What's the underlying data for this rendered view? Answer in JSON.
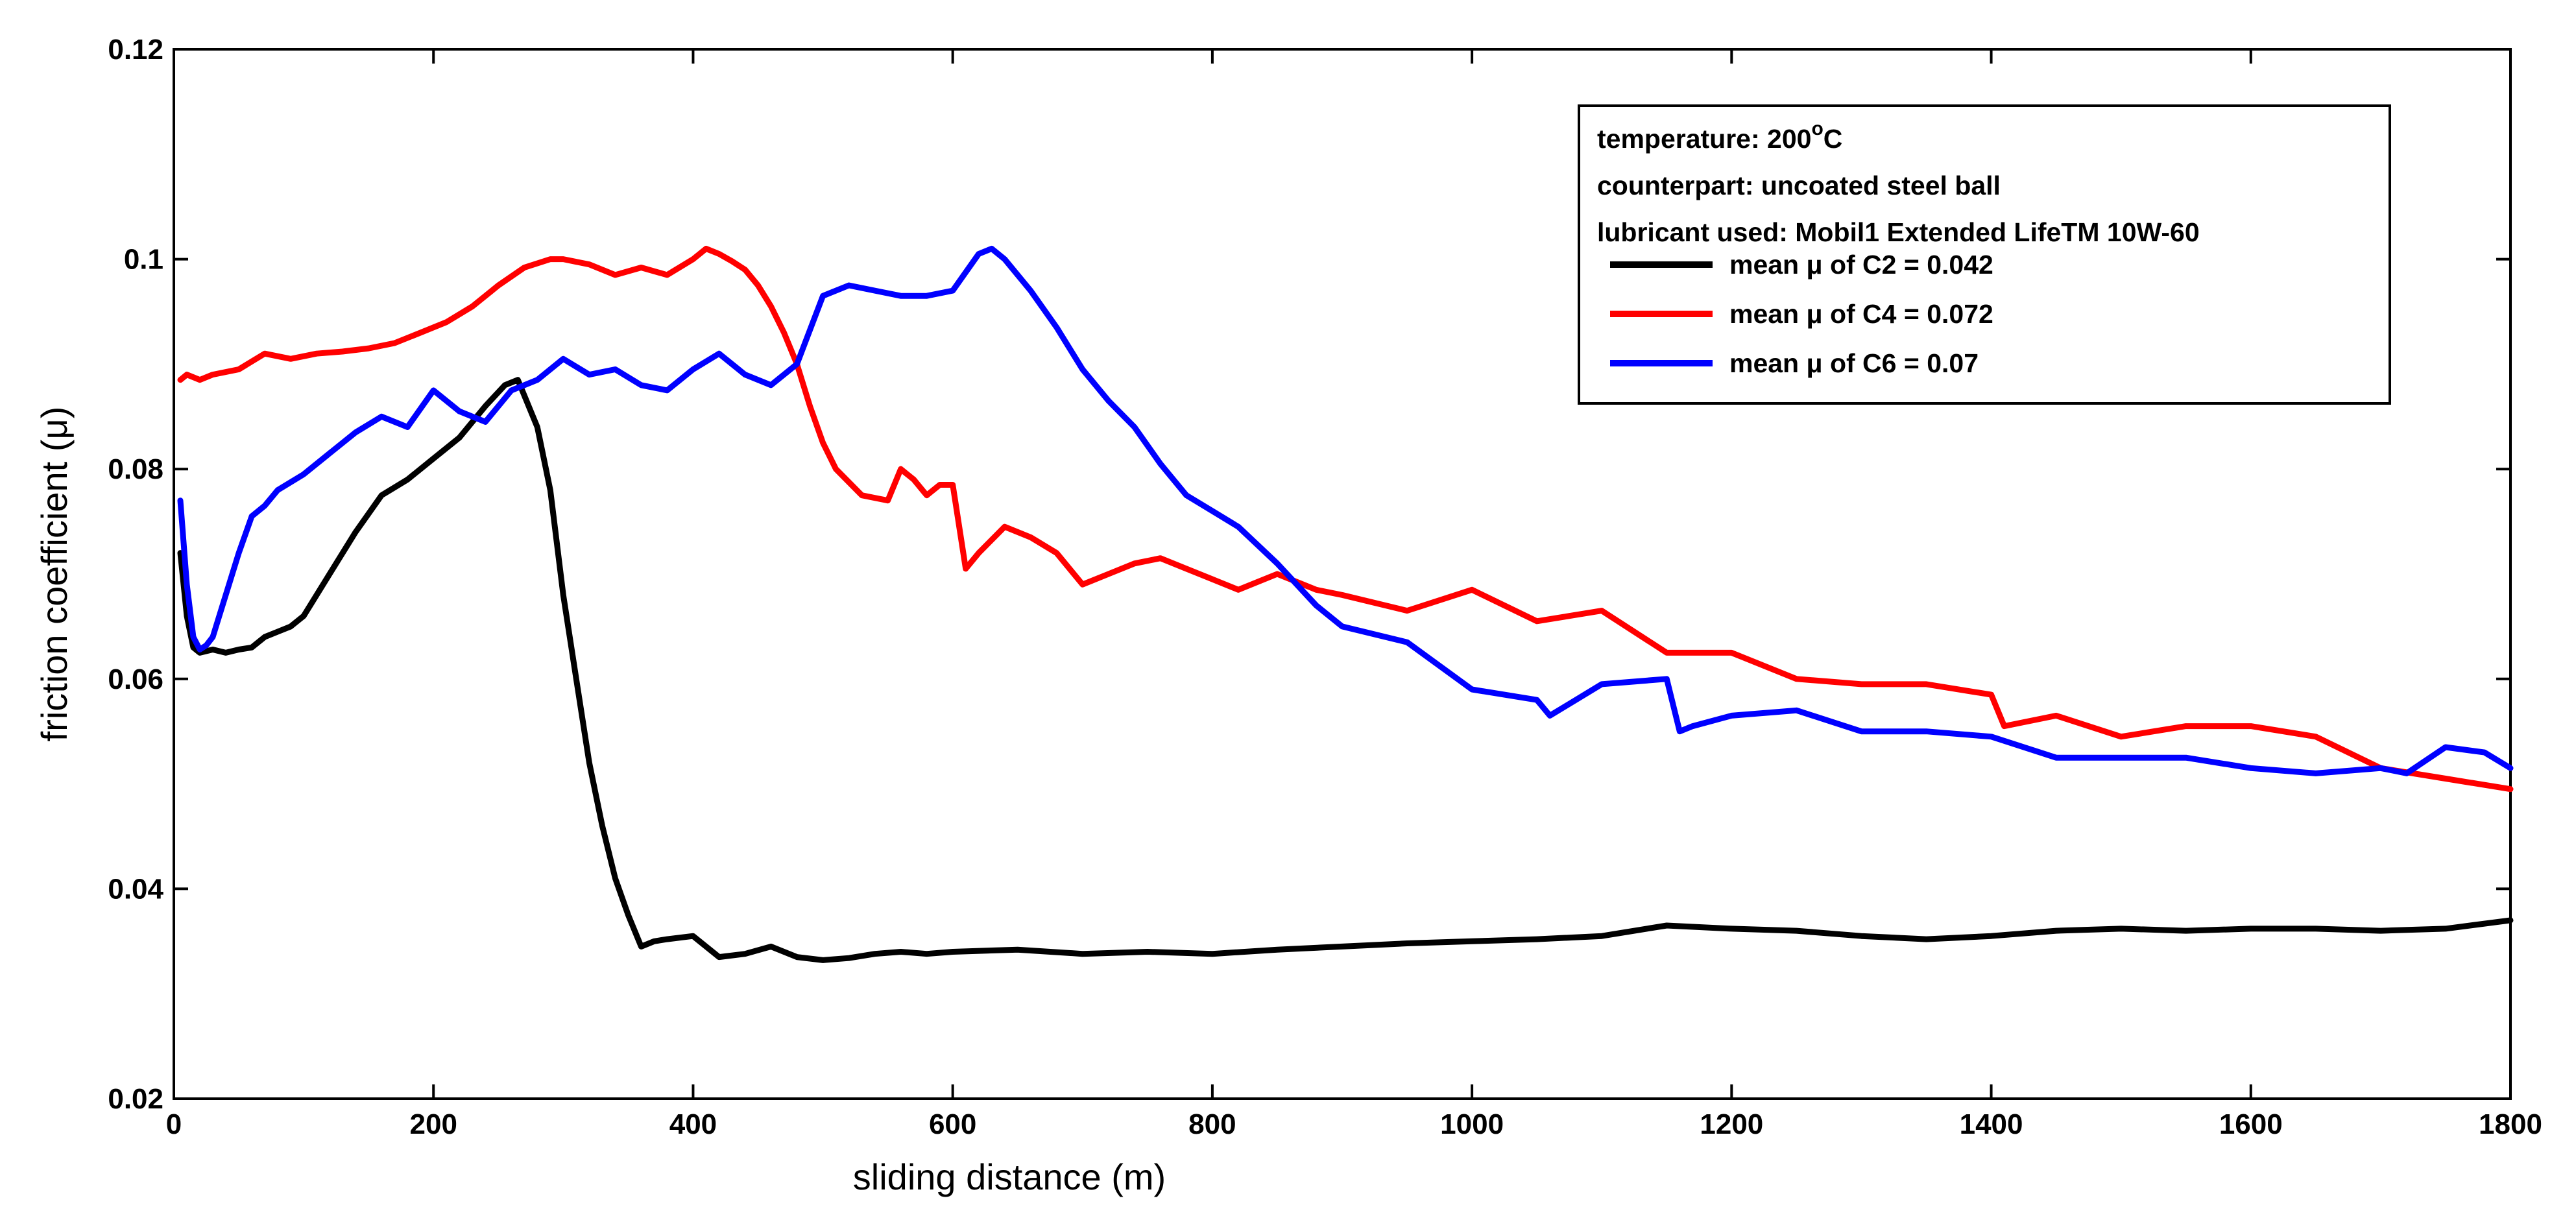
{
  "chart_data": {
    "type": "line",
    "title": "",
    "xlabel": "sliding distance (m)",
    "ylabel": "friction coefficient (μ)",
    "xlim": [
      0,
      1800
    ],
    "ylim": [
      0.02,
      0.12
    ],
    "x_ticks": [
      0,
      200,
      400,
      600,
      800,
      1000,
      1200,
      1400,
      1600,
      1800
    ],
    "x_tick_labels": [
      "0",
      "200",
      "400",
      "600",
      "800",
      "1000",
      "1200",
      "1400",
      "1600",
      "1800"
    ],
    "y_ticks": [
      0.02,
      0.04,
      0.06,
      0.08,
      0.1,
      0.12
    ],
    "y_tick_labels": [
      "0.02",
      "0.04",
      "0.06",
      "0.08",
      "0.1",
      "0.12"
    ],
    "grid": false,
    "legend_position": "top-right",
    "legend_info": {
      "temperature_prefix": "temperature: 200",
      "temperature_degree": "o",
      "temperature_unit": "C",
      "counterpart": "counterpart: uncoated steel ball",
      "lubricant": "lubricant used: Mobil1 Extended LifeTM 10W-60"
    },
    "series": [
      {
        "name": "mean μ of C2 = 0.042",
        "color": "#000000",
        "x": [
          5,
          10,
          15,
          20,
          30,
          40,
          50,
          60,
          70,
          80,
          90,
          100,
          120,
          140,
          160,
          180,
          200,
          220,
          240,
          255,
          265,
          270,
          280,
          290,
          300,
          310,
          320,
          330,
          340,
          350,
          360,
          370,
          380,
          400,
          420,
          440,
          460,
          480,
          500,
          520,
          540,
          560,
          580,
          600,
          650,
          700,
          750,
          800,
          850,
          900,
          950,
          1000,
          1050,
          1100,
          1150,
          1200,
          1250,
          1300,
          1350,
          1400,
          1450,
          1500,
          1550,
          1600,
          1650,
          1700,
          1750,
          1800
        ],
        "y": [
          0.072,
          0.066,
          0.063,
          0.0625,
          0.0628,
          0.0625,
          0.0628,
          0.063,
          0.064,
          0.0645,
          0.065,
          0.066,
          0.07,
          0.074,
          0.0775,
          0.079,
          0.081,
          0.083,
          0.086,
          0.088,
          0.0885,
          0.087,
          0.084,
          0.078,
          0.068,
          0.06,
          0.052,
          0.046,
          0.041,
          0.0375,
          0.0345,
          0.035,
          0.0352,
          0.0355,
          0.0335,
          0.0338,
          0.0345,
          0.0335,
          0.0332,
          0.0334,
          0.0338,
          0.034,
          0.0338,
          0.034,
          0.0342,
          0.0338,
          0.034,
          0.0338,
          0.0342,
          0.0345,
          0.0348,
          0.035,
          0.0352,
          0.0355,
          0.0365,
          0.0362,
          0.036,
          0.0355,
          0.0352,
          0.0355,
          0.036,
          0.0362,
          0.036,
          0.0362,
          0.0362,
          0.036,
          0.0362,
          0.037
        ]
      },
      {
        "name": "mean μ of C4 = 0.072",
        "color": "#ff0000",
        "x": [
          5,
          10,
          20,
          30,
          50,
          70,
          90,
          110,
          130,
          150,
          170,
          190,
          210,
          230,
          250,
          270,
          290,
          300,
          320,
          340,
          360,
          380,
          400,
          410,
          420,
          430,
          440,
          450,
          460,
          470,
          480,
          490,
          500,
          510,
          530,
          550,
          560,
          570,
          580,
          590,
          600,
          610,
          620,
          640,
          660,
          680,
          700,
          720,
          740,
          760,
          780,
          800,
          820,
          850,
          880,
          900,
          950,
          1000,
          1050,
          1100,
          1150,
          1200,
          1250,
          1300,
          1350,
          1400,
          1410,
          1450,
          1500,
          1550,
          1600,
          1650,
          1700,
          1750,
          1800
        ],
        "y": [
          0.0885,
          0.089,
          0.0885,
          0.089,
          0.0895,
          0.091,
          0.0905,
          0.091,
          0.0912,
          0.0915,
          0.092,
          0.093,
          0.094,
          0.0955,
          0.0975,
          0.0992,
          0.1,
          0.1,
          0.0995,
          0.0985,
          0.0992,
          0.0985,
          0.1,
          0.101,
          0.1005,
          0.0998,
          0.099,
          0.0975,
          0.0955,
          0.093,
          0.09,
          0.086,
          0.0825,
          0.08,
          0.0775,
          0.077,
          0.08,
          0.079,
          0.0775,
          0.0785,
          0.0785,
          0.0705,
          0.072,
          0.0745,
          0.0735,
          0.072,
          0.069,
          0.07,
          0.071,
          0.0715,
          0.0705,
          0.0695,
          0.0685,
          0.07,
          0.0685,
          0.068,
          0.0665,
          0.0685,
          0.0655,
          0.0665,
          0.0625,
          0.0625,
          0.06,
          0.0595,
          0.0595,
          0.0585,
          0.0555,
          0.0565,
          0.0545,
          0.0555,
          0.0555,
          0.0545,
          0.0515,
          0.0505,
          0.0495
        ]
      },
      {
        "name": "mean μ of C6 = 0.07",
        "color": "#0000ff",
        "x": [
          5,
          10,
          15,
          20,
          25,
          30,
          35,
          40,
          50,
          60,
          70,
          80,
          100,
          120,
          140,
          160,
          180,
          200,
          220,
          240,
          260,
          280,
          300,
          320,
          340,
          360,
          380,
          400,
          420,
          440,
          460,
          480,
          500,
          520,
          540,
          560,
          580,
          600,
          620,
          630,
          640,
          660,
          680,
          700,
          720,
          740,
          760,
          780,
          800,
          820,
          850,
          880,
          900,
          950,
          1000,
          1050,
          1060,
          1100,
          1150,
          1160,
          1170,
          1200,
          1250,
          1300,
          1350,
          1400,
          1450,
          1500,
          1550,
          1600,
          1650,
          1700,
          1720,
          1750,
          1780,
          1800
        ],
        "y": [
          0.077,
          0.069,
          0.064,
          0.0628,
          0.0632,
          0.064,
          0.066,
          0.068,
          0.072,
          0.0755,
          0.0765,
          0.078,
          0.0795,
          0.0815,
          0.0835,
          0.085,
          0.084,
          0.0875,
          0.0855,
          0.0845,
          0.0875,
          0.0885,
          0.0905,
          0.089,
          0.0895,
          0.088,
          0.0875,
          0.0895,
          0.091,
          0.089,
          0.088,
          0.09,
          0.0965,
          0.0975,
          0.097,
          0.0965,
          0.0965,
          0.097,
          0.1005,
          0.101,
          0.1,
          0.097,
          0.0935,
          0.0895,
          0.0865,
          0.084,
          0.0805,
          0.0775,
          0.076,
          0.0745,
          0.071,
          0.067,
          0.065,
          0.0635,
          0.059,
          0.058,
          0.0565,
          0.0595,
          0.06,
          0.055,
          0.0555,
          0.0565,
          0.057,
          0.055,
          0.055,
          0.0545,
          0.0525,
          0.0525,
          0.0525,
          0.0515,
          0.051,
          0.0515,
          0.051,
          0.0535,
          0.053,
          0.0515
        ]
      }
    ]
  }
}
